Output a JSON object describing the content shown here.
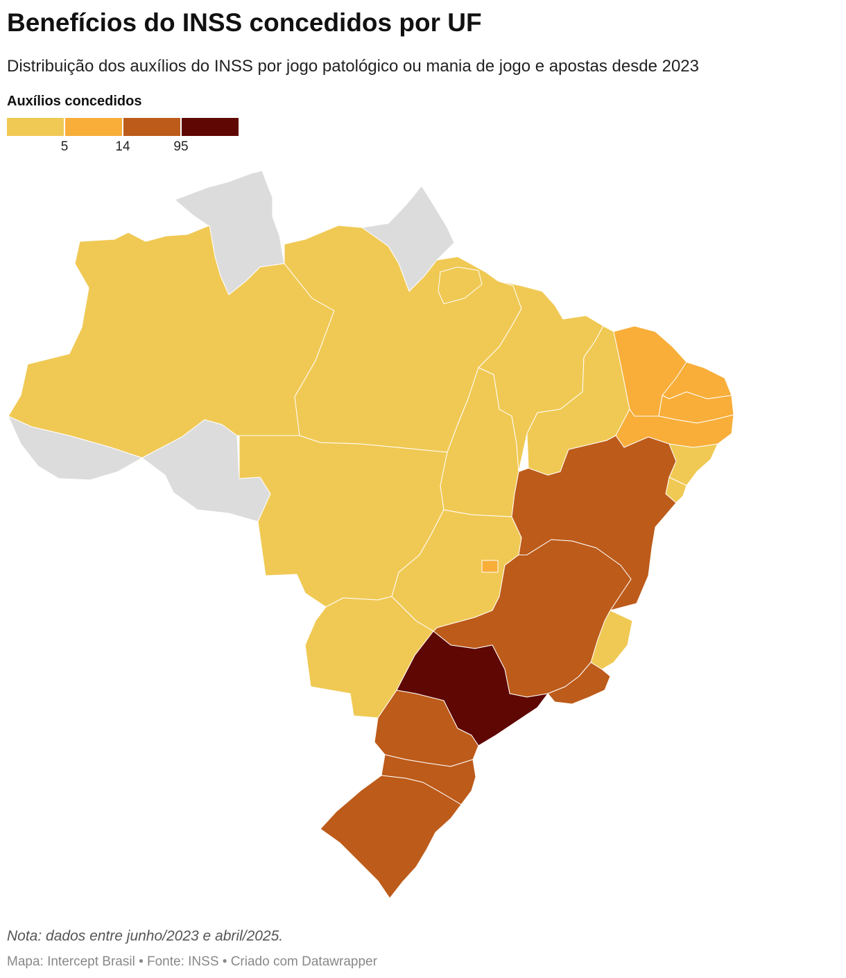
{
  "header": {
    "title": "Benefícios do INSS concedidos por UF",
    "subtitle": "Distribuição dos auxílios do INSS por jogo patológico ou mania de jogo e apostas desde 2023"
  },
  "legend": {
    "title": "Auxílios concedidos",
    "bins": [
      {
        "color": "#f0c954"
      },
      {
        "color": "#f8ae39"
      },
      {
        "color": "#bd5b1a"
      },
      {
        "color": "#5f0703"
      }
    ],
    "ticks": [
      "5",
      "14",
      "95"
    ]
  },
  "map": {
    "no_data_color": "#dcdcdc",
    "regions": [
      {
        "id": "RR",
        "bin": null
      },
      {
        "id": "AP",
        "bin": null
      },
      {
        "id": "AC",
        "bin": null
      },
      {
        "id": "RO",
        "bin": null
      },
      {
        "id": "AM",
        "bin": 0
      },
      {
        "id": "PA",
        "bin": 0
      },
      {
        "id": "MT",
        "bin": 0
      },
      {
        "id": "MS",
        "bin": 0
      },
      {
        "id": "GO",
        "bin": 0
      },
      {
        "id": "TO",
        "bin": 0
      },
      {
        "id": "MA",
        "bin": 0
      },
      {
        "id": "PI",
        "bin": 0
      },
      {
        "id": "AL",
        "bin": 0
      },
      {
        "id": "SE",
        "bin": 0
      },
      {
        "id": "ES",
        "bin": 0
      },
      {
        "id": "CE",
        "bin": 1
      },
      {
        "id": "RN",
        "bin": 1
      },
      {
        "id": "PB",
        "bin": 1
      },
      {
        "id": "PE",
        "bin": 1
      },
      {
        "id": "DF",
        "bin": 1
      },
      {
        "id": "BA",
        "bin": 2
      },
      {
        "id": "MG",
        "bin": 2
      },
      {
        "id": "RJ",
        "bin": 2
      },
      {
        "id": "PR",
        "bin": 2
      },
      {
        "id": "SC",
        "bin": 2
      },
      {
        "id": "RS",
        "bin": 2
      },
      {
        "id": "SP",
        "bin": 3
      }
    ]
  },
  "footer": {
    "note": "Nota: dados entre junho/2023 e abril/2025.",
    "credits": "Mapa: Intercept Brasil • Fonte: INSS • Criado com Datawrapper"
  }
}
